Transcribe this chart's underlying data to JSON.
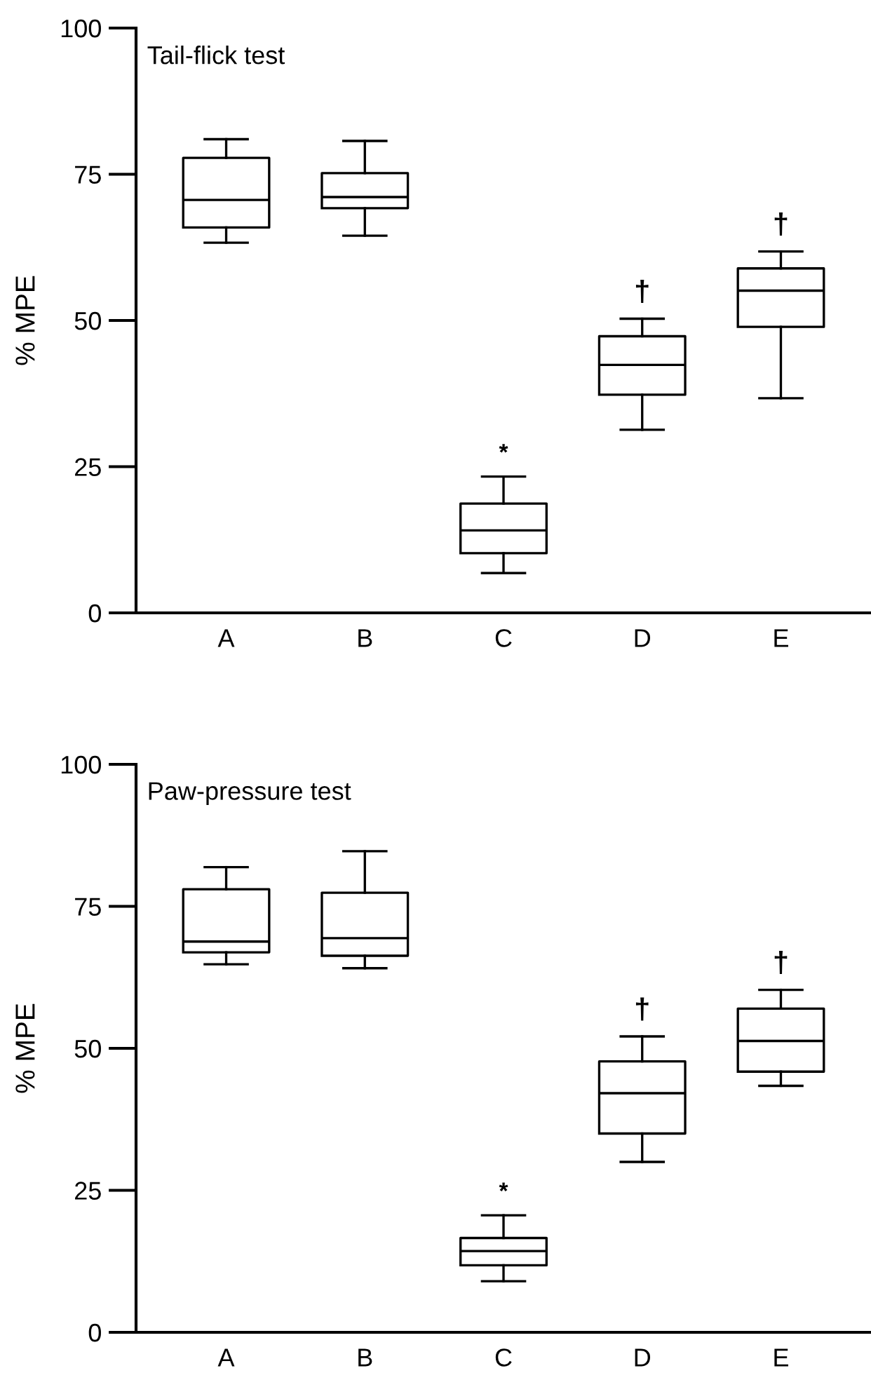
{
  "chart_data": [
    {
      "type": "box",
      "title": "Tail-flick test",
      "ylabel": "% MPE",
      "categories": [
        "A",
        "B",
        "C",
        "D",
        "E"
      ],
      "ylim": [
        0,
        100
      ],
      "yticks": [
        0,
        25,
        50,
        75,
        100
      ],
      "grid": false,
      "legend": false,
      "boxes": [
        {
          "low": 63.3,
          "q1": 65.9,
          "median": 70.6,
          "q3": 77.8,
          "high": 81.0
        },
        {
          "low": 64.5,
          "q1": 69.2,
          "median": 71.1,
          "q3": 75.2,
          "high": 80.7
        },
        {
          "low": 6.8,
          "q1": 10.2,
          "median": 14.1,
          "q3": 18.7,
          "high": 23.3
        },
        {
          "low": 31.3,
          "q1": 37.3,
          "median": 42.4,
          "q3": 47.3,
          "high": 50.3
        },
        {
          "low": 36.7,
          "q1": 48.9,
          "median": 55.1,
          "q3": 58.9,
          "high": 61.8
        }
      ],
      "annotations": [
        "*",
        "†",
        "†"
      ]
    },
    {
      "type": "box",
      "title": "Paw-pressure test",
      "ylabel": "% MPE",
      "categories": [
        "A",
        "B",
        "C",
        "D",
        "E"
      ],
      "ylim": [
        0,
        100
      ],
      "yticks": [
        0,
        25,
        50,
        75,
        100
      ],
      "grid": false,
      "legend": false,
      "boxes": [
        {
          "low": 64.8,
          "q1": 66.9,
          "median": 68.8,
          "q3": 78.0,
          "high": 81.9
        },
        {
          "low": 64.1,
          "q1": 66.3,
          "median": 69.4,
          "q3": 77.4,
          "high": 84.7
        },
        {
          "low": 9.0,
          "q1": 11.8,
          "median": 14.3,
          "q3": 16.6,
          "high": 20.6
        },
        {
          "low": 30.0,
          "q1": 35.0,
          "median": 42.1,
          "q3": 47.7,
          "high": 52.1
        },
        {
          "low": 43.4,
          "q1": 45.9,
          "median": 51.3,
          "q3": 57.0,
          "high": 60.3
        }
      ],
      "annotations": [
        "*",
        "†",
        "†"
      ]
    }
  ]
}
